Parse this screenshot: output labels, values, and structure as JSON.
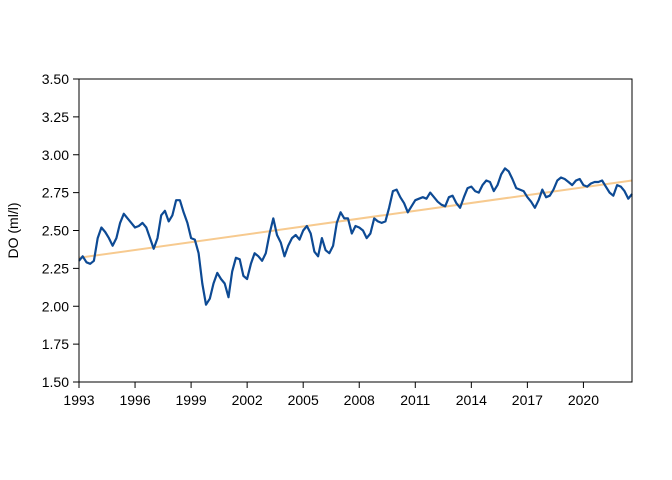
{
  "chart_data": {
    "type": "line",
    "title": "",
    "xlabel": "",
    "ylabel": "DO (ml/l)",
    "xlim": [
      1993.0,
      2022.6
    ],
    "ylim": [
      1.5,
      3.5
    ],
    "x_ticks": [
      "1993",
      "1996",
      "1999",
      "2002",
      "2005",
      "2008",
      "2011",
      "2014",
      "2017",
      "2020"
    ],
    "y_ticks": [
      "1.50",
      "1.75",
      "2.00",
      "2.25",
      "2.50",
      "2.75",
      "3.00",
      "3.25",
      "3.50"
    ],
    "grid": false,
    "legend": "none",
    "series": [
      {
        "color": "#0d4a94",
        "x": [
          1993.0,
          1993.2,
          1993.4,
          1993.6,
          1993.8,
          1994.0,
          1994.2,
          1994.4,
          1994.6,
          1994.8,
          1995.0,
          1995.2,
          1995.4,
          1995.6,
          1995.8,
          1996.0,
          1996.2,
          1996.4,
          1996.6,
          1996.8,
          1997.0,
          1997.2,
          1997.4,
          1997.6,
          1997.8,
          1998.0,
          1998.2,
          1998.4,
          1998.6,
          1998.8,
          1999.0,
          1999.2,
          1999.4,
          1999.6,
          1999.8,
          2000.0,
          2000.2,
          2000.4,
          2000.6,
          2000.8,
          2001.0,
          2001.2,
          2001.4,
          2001.6,
          2001.8,
          2002.0,
          2002.2,
          2002.4,
          2002.6,
          2002.8,
          2003.0,
          2003.2,
          2003.4,
          2003.6,
          2003.8,
          2004.0,
          2004.2,
          2004.4,
          2004.6,
          2004.8,
          2005.0,
          2005.2,
          2005.4,
          2005.6,
          2005.8,
          2006.0,
          2006.2,
          2006.4,
          2006.6,
          2006.8,
          2007.0,
          2007.2,
          2007.4,
          2007.6,
          2007.8,
          2008.0,
          2008.2,
          2008.4,
          2008.6,
          2008.8,
          2009.0,
          2009.2,
          2009.4,
          2009.6,
          2009.8,
          2010.0,
          2010.2,
          2010.4,
          2010.6,
          2010.8,
          2011.0,
          2011.2,
          2011.4,
          2011.6,
          2011.8,
          2012.0,
          2012.2,
          2012.4,
          2012.6,
          2012.8,
          2013.0,
          2013.2,
          2013.4,
          2013.6,
          2013.8,
          2014.0,
          2014.2,
          2014.4,
          2014.6,
          2014.8,
          2015.0,
          2015.2,
          2015.4,
          2015.6,
          2015.8,
          2016.0,
          2016.2,
          2016.4,
          2016.6,
          2016.8,
          2017.0,
          2017.2,
          2017.4,
          2017.6,
          2017.8,
          2018.0,
          2018.2,
          2018.4,
          2018.6,
          2018.8,
          2019.0,
          2019.2,
          2019.4,
          2019.6,
          2019.8,
          2020.0,
          2020.2,
          2020.4,
          2020.6,
          2020.8,
          2021.0,
          2021.2,
          2021.4,
          2021.6,
          2021.8,
          2022.0,
          2022.2,
          2022.4,
          2022.6
        ],
        "values": [
          2.3,
          2.33,
          2.29,
          2.28,
          2.3,
          2.45,
          2.52,
          2.49,
          2.45,
          2.4,
          2.45,
          2.55,
          2.61,
          2.58,
          2.55,
          2.52,
          2.53,
          2.55,
          2.52,
          2.45,
          2.38,
          2.45,
          2.6,
          2.63,
          2.56,
          2.6,
          2.7,
          2.7,
          2.62,
          2.55,
          2.45,
          2.44,
          2.35,
          2.15,
          2.01,
          2.05,
          2.15,
          2.22,
          2.18,
          2.15,
          2.06,
          2.23,
          2.32,
          2.31,
          2.2,
          2.18,
          2.28,
          2.35,
          2.33,
          2.3,
          2.35,
          2.48,
          2.58,
          2.47,
          2.42,
          2.33,
          2.4,
          2.45,
          2.47,
          2.44,
          2.5,
          2.53,
          2.48,
          2.36,
          2.33,
          2.45,
          2.37,
          2.35,
          2.4,
          2.55,
          2.62,
          2.58,
          2.58,
          2.48,
          2.53,
          2.52,
          2.5,
          2.45,
          2.48,
          2.58,
          2.56,
          2.55,
          2.56,
          2.65,
          2.76,
          2.77,
          2.72,
          2.68,
          2.62,
          2.66,
          2.7,
          2.71,
          2.72,
          2.71,
          2.75,
          2.72,
          2.69,
          2.67,
          2.66,
          2.72,
          2.73,
          2.68,
          2.65,
          2.72,
          2.78,
          2.79,
          2.76,
          2.75,
          2.8,
          2.83,
          2.82,
          2.76,
          2.8,
          2.87,
          2.91,
          2.89,
          2.84,
          2.78,
          2.77,
          2.76,
          2.72,
          2.69,
          2.65,
          2.7,
          2.77,
          2.72,
          2.73,
          2.77,
          2.83,
          2.85,
          2.84,
          2.82,
          2.8,
          2.83,
          2.84,
          2.8,
          2.79,
          2.81,
          2.82,
          2.82,
          2.83,
          2.79,
          2.75,
          2.73,
          2.8,
          2.79,
          2.76,
          2.71,
          2.74
        ]
      },
      {
        "color": "#f7ca8f",
        "x": [
          1993.0,
          2022.6
        ],
        "values": [
          2.32,
          2.83
        ]
      }
    ]
  }
}
